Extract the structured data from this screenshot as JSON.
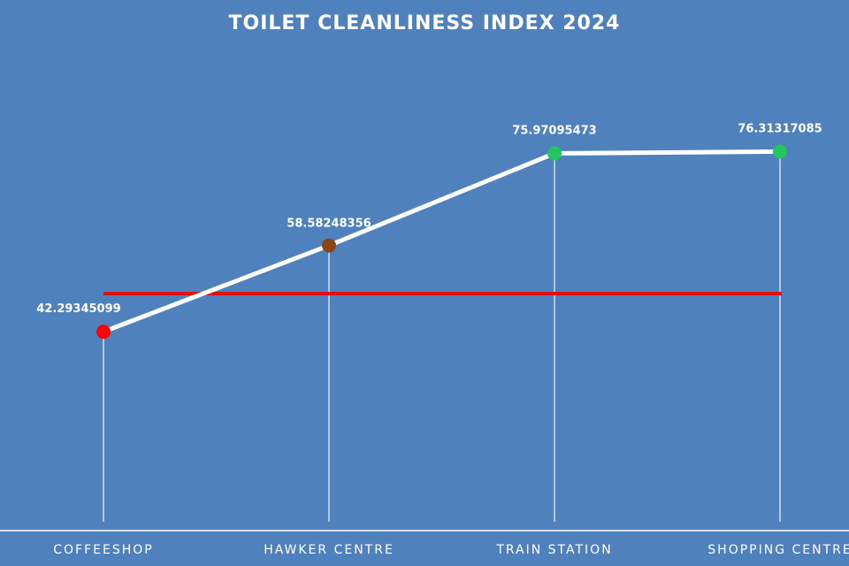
{
  "chart_data": {
    "type": "line",
    "title": "TOILET CLEANLINESS INDEX 2024",
    "categories": [
      "COFFEESHOP",
      "HAWKER CENTRE",
      "TRAIN STATION",
      "SHOPPING CENTRE"
    ],
    "series": [
      {
        "values": [
          42.29345099,
          58.58248356,
          75.97095473,
          76.31317085
        ],
        "labels": [
          "42.29345099",
          "58.58248356",
          "75.97095473",
          "76.31317085"
        ],
        "line_color": "#ffffff",
        "marker_colors": [
          "#ff0000",
          "#8b4513",
          "#22c55e",
          "#22c55e"
        ]
      }
    ],
    "reference_line": {
      "value": 49.5,
      "color": "#e01010"
    },
    "ylim": [
      0,
      90
    ],
    "grid": false,
    "axis_color": "#ffffff",
    "background": "#4f81bd"
  }
}
